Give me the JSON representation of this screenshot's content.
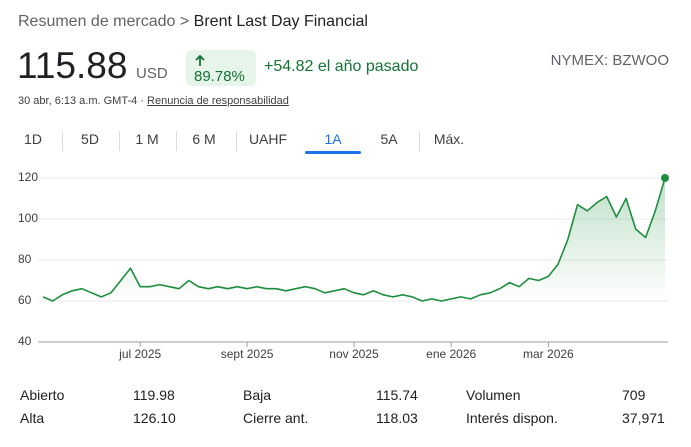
{
  "header": {
    "breadcrumb": "Resumen de mercado",
    "separator": ">",
    "title": "Brent Last Day Financial",
    "price": "115.88",
    "currency": "USD",
    "change_percent": "89.78%",
    "change": "+54.82 el año pasado",
    "ticker": "NYMEX: BZWOO",
    "timestamp": "30 abr, 6:13 a.m. GMT-4",
    "dot": "·",
    "disclaimer": "Renuncia de responsabilidad"
  },
  "tabs": {
    "items": [
      "1D",
      "5D",
      "1 M",
      "6 M",
      "UAHF",
      "1A",
      "5A",
      "Máx."
    ],
    "selected": 5
  },
  "chart": {
    "type": "line",
    "color": "#1e8e3e",
    "categories": [
      null,
      null,
      null,
      null,
      null,
      null,
      null,
      null,
      null,
      null,
      "jul 2025",
      null,
      null,
      null,
      null,
      null,
      null,
      null,
      null,
      null,
      null,
      "sept 2025",
      null,
      null,
      null,
      null,
      null,
      null,
      null,
      null,
      null,
      null,
      "nov 2025",
      null,
      null,
      null,
      null,
      null,
      null,
      null,
      null,
      null,
      "ene 2026",
      null,
      null,
      null,
      null,
      null,
      null,
      null,
      null,
      null,
      "mar 2026",
      null,
      null,
      null,
      null,
      null,
      null,
      null,
      null,
      null,
      null,
      null,
      null
    ],
    "values": [
      62,
      60,
      63,
      65,
      66,
      64,
      62,
      64,
      70,
      76,
      67,
      67,
      68,
      67,
      66,
      70,
      67,
      66,
      67,
      66,
      67,
      66,
      67,
      66,
      66,
      65,
      66,
      67,
      66,
      64,
      65,
      66,
      64,
      63,
      65,
      63,
      62,
      63,
      62,
      60,
      61,
      60,
      61,
      62,
      61,
      63,
      64,
      66,
      69,
      67,
      71,
      70,
      72,
      78,
      90,
      107,
      104,
      108,
      111,
      101,
      110,
      95,
      91,
      104,
      120
    ],
    "ylim": [
      40,
      120
    ],
    "yticks": [
      120,
      100,
      80,
      60,
      40
    ],
    "grid": true
  },
  "table": {
    "rows": [
      [
        "Abierto",
        "119.98",
        "Baja",
        "115.74",
        "Volumen",
        "709"
      ],
      [
        "Alta",
        "126.10",
        "Cierre ant.",
        "118.03",
        "Interés dispon.",
        "37,971"
      ]
    ]
  }
}
